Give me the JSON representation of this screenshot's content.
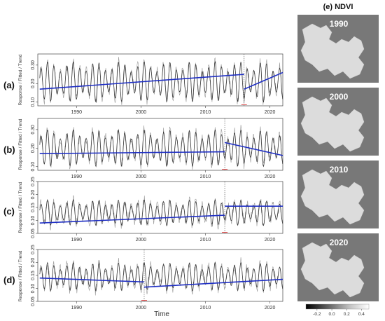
{
  "chart_data": [
    {
      "type": "line",
      "panel": "(a)",
      "ylabel": "Response / Fitted / Trend",
      "xlim": [
        1984,
        2022
      ],
      "ylim": [
        0.08,
        0.36
      ],
      "yticks": [
        0.1,
        0.2,
        0.3
      ],
      "ytick_labels": [
        "0.10",
        "0.20",
        "0.30"
      ],
      "xticks": [
        1990,
        2000,
        2010,
        2020
      ],
      "xtick_labels": [
        "1990",
        "2000",
        "2010",
        "2020"
      ],
      "seasonal": {
        "min": 0.1,
        "max": 0.32
      },
      "breakpoints": [
        2016
      ],
      "trend": [
        {
          "x": [
            1984.3,
            2016.0
          ],
          "y": [
            0.17,
            0.25
          ]
        },
        {
          "x": [
            2016.0,
            2022.0
          ],
          "y": [
            0.17,
            0.26
          ]
        }
      ]
    },
    {
      "type": "line",
      "panel": "(b)",
      "ylabel": "Response / Fitted / Trend",
      "xlim": [
        1984,
        2022
      ],
      "ylim": [
        0.08,
        0.36
      ],
      "yticks": [
        0.1,
        0.2,
        0.3
      ],
      "ytick_labels": [
        "0.10",
        "0.20",
        "0.30"
      ],
      "xticks": [
        1990,
        2000,
        2010,
        2020
      ],
      "xtick_labels": [
        "1990",
        "2000",
        "2010",
        "2020"
      ],
      "seasonal": {
        "min": 0.1,
        "max": 0.3
      },
      "breakpoints": [
        2013
      ],
      "trend": [
        {
          "x": [
            1984.3,
            2013.0
          ],
          "y": [
            0.17,
            0.18
          ]
        },
        {
          "x": [
            2013.0,
            2022.0
          ],
          "y": [
            0.23,
            0.16
          ]
        }
      ]
    },
    {
      "type": "line",
      "panel": "(c)",
      "ylabel": "Response / Fitted / Trend",
      "xlim": [
        1984,
        2022
      ],
      "ylim": [
        0.05,
        0.25
      ],
      "yticks": [
        0.05,
        0.1,
        0.15,
        0.2,
        0.25
      ],
      "ytick_labels": [
        "0.05",
        "0.10",
        "0.15",
        "0.20",
        "0.25"
      ],
      "xticks": [
        1990,
        2000,
        2010,
        2020
      ],
      "xtick_labels": [
        "1990",
        "2000",
        "2010",
        "2020"
      ],
      "seasonal": {
        "min": 0.08,
        "max": 0.18
      },
      "breakpoints": [
        2013
      ],
      "trend": [
        {
          "x": [
            1984.3,
            2013.0
          ],
          "y": [
            0.09,
            0.12
          ]
        },
        {
          "x": [
            2013.0,
            2022.0
          ],
          "y": [
            0.155,
            0.155
          ]
        }
      ]
    },
    {
      "type": "line",
      "panel": "(d)",
      "ylabel": "Response / Fitted / Trend",
      "xlabel": "Time",
      "xlim": [
        1984,
        2022
      ],
      "ylim": [
        0.05,
        0.25
      ],
      "yticks": [
        0.05,
        0.1,
        0.15,
        0.2,
        0.25
      ],
      "ytick_labels": [
        "0.05",
        "0.10",
        "0.15",
        "0.20",
        "0.25"
      ],
      "xticks": [
        1990,
        2000,
        2010,
        2020
      ],
      "xtick_labels": [
        "1990",
        "2000",
        "2010",
        "2020"
      ],
      "seasonal": {
        "min": 0.09,
        "max": 0.2
      },
      "breakpoints": [
        2000.5
      ],
      "trend": [
        {
          "x": [
            1984.3,
            2000.5
          ],
          "y": [
            0.14,
            0.125
          ]
        },
        {
          "x": [
            2000.5,
            2022.0
          ],
          "y": [
            0.105,
            0.135
          ]
        }
      ]
    }
  ],
  "ndvi": {
    "title": "(e) NDVI",
    "years": [
      "1990",
      "2000",
      "2010",
      "2020"
    ],
    "colorbar": {
      "ticks": [
        -0.2,
        0.0,
        0.2,
        0.4
      ],
      "tick_labels": [
        "-0.2",
        "0.0",
        "0.2",
        "0.4"
      ],
      "range": [
        -0.35,
        0.5
      ]
    }
  },
  "colors": {
    "response": "#9a9a9a",
    "fitted": "#2b2b2b",
    "trend": "#1f2fc4",
    "breakpoint": "#555555",
    "breakpoint_interval": "#e05050",
    "map_background": "#787878",
    "map_land": "#dcdcdc"
  }
}
